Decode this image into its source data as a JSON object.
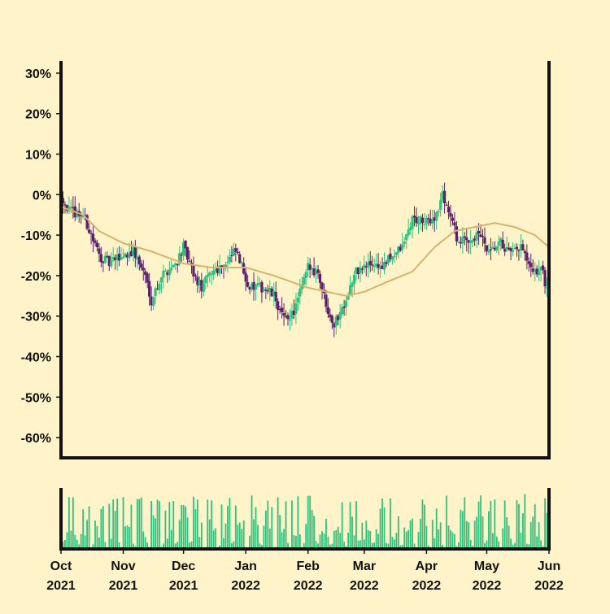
{
  "colors": {
    "background": "#fff3c9",
    "up": "#2ec27e",
    "down": "#5b1f6b",
    "moving_average": "#d9b26a",
    "volume": "#2ec27e",
    "axis": "#111111"
  },
  "chart_data": [
    {
      "type": "candlestick",
      "title": "",
      "xlabel": "",
      "ylabel": "",
      "ylim": [
        -65,
        33
      ],
      "y_tick_values": [
        30,
        20,
        10,
        0,
        -10,
        -20,
        -30,
        -40,
        -50,
        -60
      ],
      "y_tick_labels": [
        "30%",
        "20%",
        "10%",
        "0%",
        "-10%",
        "-20%",
        "-30%",
        "-40%",
        "-50%",
        "-60%"
      ],
      "x_range": [
        "2021-10-01",
        "2022-06-01"
      ],
      "x_ticks": [
        {
          "date": "2021-10-01",
          "month": "Oct",
          "year": "2021"
        },
        {
          "date": "2021-11-01",
          "month": "Nov",
          "year": "2021"
        },
        {
          "date": "2021-12-01",
          "month": "Dec",
          "year": "2021"
        },
        {
          "date": "2022-01-01",
          "month": "Jan",
          "year": "2022"
        },
        {
          "date": "2022-02-01",
          "month": "Feb",
          "year": "2022"
        },
        {
          "date": "2022-03-01",
          "month": "Mar",
          "year": "2022"
        },
        {
          "date": "2022-04-01",
          "month": "Apr",
          "year": "2022"
        },
        {
          "date": "2022-05-01",
          "month": "May",
          "year": "2022"
        },
        {
          "date": "2022-06-01",
          "month": "Jun",
          "year": "2022"
        }
      ],
      "close_keypoints": [
        {
          "date": "2021-10-01",
          "value": 0
        },
        {
          "date": "2021-10-05",
          "value": -4
        },
        {
          "date": "2021-10-12",
          "value": -5
        },
        {
          "date": "2021-10-20",
          "value": -15
        },
        {
          "date": "2021-10-25",
          "value": -17
        },
        {
          "date": "2021-11-01",
          "value": -15
        },
        {
          "date": "2021-11-06",
          "value": -14
        },
        {
          "date": "2021-11-12",
          "value": -20
        },
        {
          "date": "2021-11-15",
          "value": -26
        },
        {
          "date": "2021-11-20",
          "value": -20
        },
        {
          "date": "2021-11-27",
          "value": -17
        },
        {
          "date": "2021-12-01",
          "value": -13
        },
        {
          "date": "2021-12-06",
          "value": -20
        },
        {
          "date": "2021-12-10",
          "value": -23
        },
        {
          "date": "2021-12-15",
          "value": -19
        },
        {
          "date": "2021-12-22",
          "value": -17
        },
        {
          "date": "2021-12-27",
          "value": -14
        },
        {
          "date": "2022-01-03",
          "value": -23
        },
        {
          "date": "2022-01-10",
          "value": -23
        },
        {
          "date": "2022-01-15",
          "value": -25
        },
        {
          "date": "2022-01-20",
          "value": -31
        },
        {
          "date": "2022-01-25",
          "value": -29
        },
        {
          "date": "2022-02-01",
          "value": -18
        },
        {
          "date": "2022-02-06",
          "value": -19
        },
        {
          "date": "2022-02-10",
          "value": -27
        },
        {
          "date": "2022-02-14",
          "value": -32
        },
        {
          "date": "2022-02-18",
          "value": -28
        },
        {
          "date": "2022-02-25",
          "value": -19
        },
        {
          "date": "2022-03-05",
          "value": -17
        },
        {
          "date": "2022-03-10",
          "value": -18
        },
        {
          "date": "2022-03-15",
          "value": -15
        },
        {
          "date": "2022-03-20",
          "value": -13
        },
        {
          "date": "2022-03-25",
          "value": -6
        },
        {
          "date": "2022-04-01",
          "value": -7
        },
        {
          "date": "2022-04-06",
          "value": -5
        },
        {
          "date": "2022-04-09",
          "value": 0
        },
        {
          "date": "2022-04-12",
          "value": -4
        },
        {
          "date": "2022-04-17",
          "value": -12
        },
        {
          "date": "2022-04-22",
          "value": -11
        },
        {
          "date": "2022-04-28",
          "value": -10
        },
        {
          "date": "2022-05-02",
          "value": -15
        },
        {
          "date": "2022-05-08",
          "value": -12
        },
        {
          "date": "2022-05-13",
          "value": -15
        },
        {
          "date": "2022-05-18",
          "value": -13
        },
        {
          "date": "2022-05-24",
          "value": -20
        },
        {
          "date": "2022-05-28",
          "value": -18
        },
        {
          "date": "2022-06-01",
          "value": -25
        }
      ],
      "moving_average_keypoints": [
        {
          "date": "2021-10-01",
          "value": -3
        },
        {
          "date": "2021-10-12",
          "value": -5
        },
        {
          "date": "2021-10-20",
          "value": -9
        },
        {
          "date": "2021-11-01",
          "value": -12
        },
        {
          "date": "2021-11-15",
          "value": -14
        },
        {
          "date": "2021-12-01",
          "value": -17
        },
        {
          "date": "2021-12-15",
          "value": -18
        },
        {
          "date": "2022-01-01",
          "value": -18
        },
        {
          "date": "2022-01-15",
          "value": -20
        },
        {
          "date": "2022-02-01",
          "value": -23
        },
        {
          "date": "2022-02-20",
          "value": -25
        },
        {
          "date": "2022-03-01",
          "value": -24
        },
        {
          "date": "2022-03-15",
          "value": -21
        },
        {
          "date": "2022-03-25",
          "value": -19
        },
        {
          "date": "2022-04-05",
          "value": -13
        },
        {
          "date": "2022-04-15",
          "value": -9
        },
        {
          "date": "2022-04-25",
          "value": -8
        },
        {
          "date": "2022-05-05",
          "value": -7
        },
        {
          "date": "2022-05-15",
          "value": -8
        },
        {
          "date": "2022-05-25",
          "value": -10
        },
        {
          "date": "2022-06-01",
          "value": -13
        }
      ],
      "volume": {
        "ylim": [
          0,
          1
        ],
        "note_scale": "relative"
      }
    }
  ]
}
